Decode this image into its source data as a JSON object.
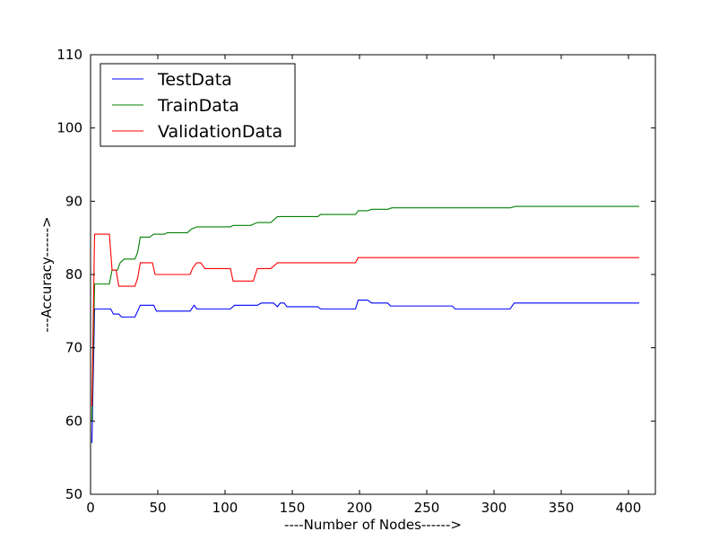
{
  "chart_data": {
    "type": "line",
    "title": "",
    "xlabel": "----Number of Nodes------>",
    "ylabel": "---Accuracy------>",
    "xlim": [
      0,
      420
    ],
    "ylim": [
      50,
      110
    ],
    "xticks": [
      0,
      50,
      100,
      150,
      200,
      250,
      300,
      350,
      400
    ],
    "yticks": [
      50,
      60,
      70,
      80,
      90,
      100,
      110
    ],
    "grid": false,
    "legend_position": "top-left",
    "series": [
      {
        "name": "TestData",
        "color": "#0000ff",
        "points": [
          [
            1,
            57.0
          ],
          [
            3,
            75.3
          ],
          [
            10,
            75.3
          ],
          [
            15,
            75.3
          ],
          [
            17,
            74.6
          ],
          [
            21,
            74.6
          ],
          [
            23,
            74.2
          ],
          [
            33,
            74.2
          ],
          [
            37,
            75.8
          ],
          [
            47,
            75.8
          ],
          [
            49,
            75.0
          ],
          [
            74,
            75.0
          ],
          [
            77,
            75.8
          ],
          [
            79,
            75.3
          ],
          [
            104,
            75.3
          ],
          [
            107,
            75.8
          ],
          [
            124,
            75.8
          ],
          [
            127,
            76.1
          ],
          [
            136,
            76.1
          ],
          [
            139,
            75.6
          ],
          [
            141,
            76.1
          ],
          [
            144,
            76.1
          ],
          [
            146,
            75.6
          ],
          [
            169,
            75.6
          ],
          [
            171,
            75.3
          ],
          [
            197,
            75.3
          ],
          [
            199,
            76.5
          ],
          [
            206,
            76.5
          ],
          [
            209,
            76.1
          ],
          [
            221,
            76.1
          ],
          [
            223,
            75.7
          ],
          [
            269,
            75.7
          ],
          [
            271,
            75.3
          ],
          [
            312,
            75.3
          ],
          [
            315,
            76.1
          ],
          [
            408,
            76.1
          ]
        ]
      },
      {
        "name": "TrainData",
        "color": "#008000",
        "points": [
          [
            1,
            60.0
          ],
          [
            3,
            78.7
          ],
          [
            14,
            78.7
          ],
          [
            16,
            80.6
          ],
          [
            20,
            80.6
          ],
          [
            22,
            81.6
          ],
          [
            25,
            82.1
          ],
          [
            33,
            82.1
          ],
          [
            35,
            83.0
          ],
          [
            37,
            85.1
          ],
          [
            44,
            85.1
          ],
          [
            47,
            85.5
          ],
          [
            55,
            85.5
          ],
          [
            57,
            85.7
          ],
          [
            72,
            85.7
          ],
          [
            75,
            86.2
          ],
          [
            79,
            86.5
          ],
          [
            104,
            86.5
          ],
          [
            106,
            86.7
          ],
          [
            119,
            86.7
          ],
          [
            124,
            87.1
          ],
          [
            134,
            87.1
          ],
          [
            139,
            87.9
          ],
          [
            169,
            87.9
          ],
          [
            171,
            88.2
          ],
          [
            197,
            88.2
          ],
          [
            199,
            88.7
          ],
          [
            206,
            88.7
          ],
          [
            209,
            88.9
          ],
          [
            221,
            88.9
          ],
          [
            224,
            89.1
          ],
          [
            312,
            89.1
          ],
          [
            316,
            89.3
          ],
          [
            408,
            89.3
          ]
        ]
      },
      {
        "name": "ValidationData",
        "color": "#ff0000",
        "points": [
          [
            1,
            62.0
          ],
          [
            3,
            85.5
          ],
          [
            14,
            85.5
          ],
          [
            16,
            80.6
          ],
          [
            19,
            80.6
          ],
          [
            21,
            78.4
          ],
          [
            33,
            78.4
          ],
          [
            35,
            79.5
          ],
          [
            37,
            81.6
          ],
          [
            46,
            81.6
          ],
          [
            48,
            80.0
          ],
          [
            74,
            80.0
          ],
          [
            76,
            80.9
          ],
          [
            79,
            81.6
          ],
          [
            82,
            81.6
          ],
          [
            85,
            80.8
          ],
          [
            104,
            80.8
          ],
          [
            106,
            79.1
          ],
          [
            121,
            79.1
          ],
          [
            124,
            80.8
          ],
          [
            134,
            80.8
          ],
          [
            139,
            81.6
          ],
          [
            197,
            81.6
          ],
          [
            199,
            82.3
          ],
          [
            408,
            82.3
          ]
        ]
      }
    ]
  }
}
